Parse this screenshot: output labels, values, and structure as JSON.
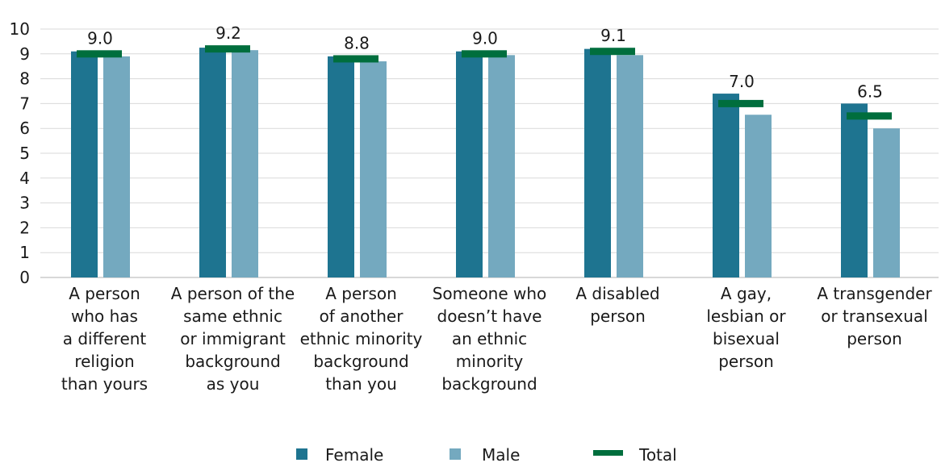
{
  "chart_data": {
    "type": "bar",
    "title": "",
    "xlabel": "",
    "ylabel": "",
    "ylim": [
      0,
      10
    ],
    "yticks": [
      "0",
      "1",
      "2",
      "3",
      "4",
      "5",
      "6",
      "7",
      "8",
      "9",
      "10"
    ],
    "grid": true,
    "legend_position": "bottom",
    "categories": [
      [
        "A person",
        "who has",
        "a different",
        "religion",
        "than yours"
      ],
      [
        "A person of the",
        "same ethnic",
        "or immigrant",
        "background",
        "as you"
      ],
      [
        "A person",
        "of another",
        "ethnic minority",
        "background",
        "than you"
      ],
      [
        "Someone who",
        "doesn’t have",
        "an ethnic",
        "minority",
        "background"
      ],
      [
        "A disabled",
        "person"
      ],
      [
        "A gay,",
        "lesbian or",
        "bisexual",
        "person"
      ],
      [
        "A transgender",
        "or transexual",
        "person"
      ]
    ],
    "series": [
      {
        "name": "Female",
        "color": "#1e7490",
        "values": [
          9.1,
          9.25,
          8.9,
          9.1,
          9.2,
          7.4,
          7.0
        ]
      },
      {
        "name": "Male",
        "color": "#74a9bf",
        "values": [
          8.9,
          9.15,
          8.7,
          8.95,
          8.95,
          6.55,
          6.0
        ]
      },
      {
        "name": "Total",
        "color": "#006e3d",
        "marker": "line",
        "values": [
          9.0,
          9.2,
          8.8,
          9.0,
          9.1,
          7.0,
          6.5
        ]
      }
    ],
    "data_labels": [
      "9.0",
      "9.2",
      "8.8",
      "9.0",
      "9.1",
      "7.0",
      "6.5"
    ]
  }
}
